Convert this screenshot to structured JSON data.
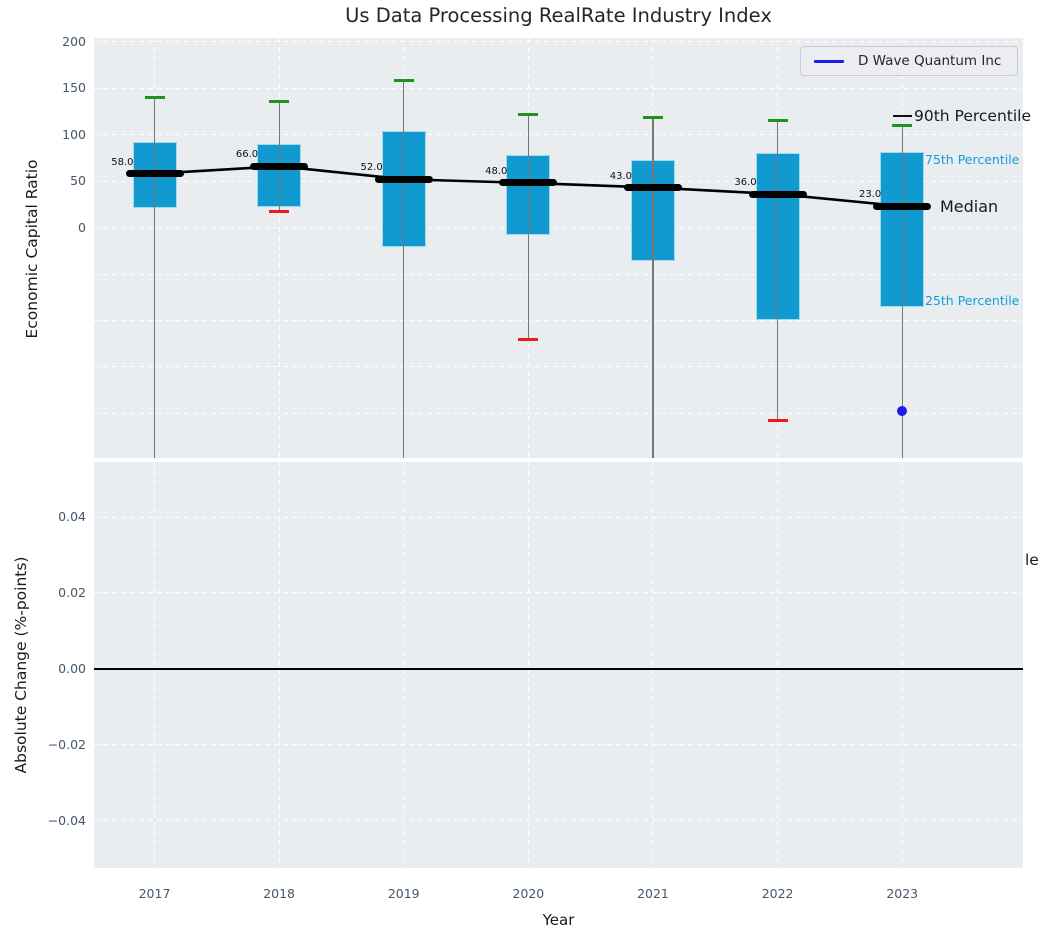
{
  "chart_data": {
    "type": "boxplot",
    "title": "Us Data Processing RealRate Industry Index",
    "xlabel": "Year",
    "legend": {
      "label": "D Wave Quantum Inc",
      "position": "upper right"
    },
    "annotations": {
      "p90": "90th Percentile",
      "p75": "75th Percentile",
      "median": "Median",
      "p25": "25th Percentile",
      "clipped_right": "le"
    },
    "categories": [
      "2017",
      "2018",
      "2019",
      "2020",
      "2021",
      "2022",
      "2023"
    ],
    "subplots": [
      {
        "ylabel": "Economic Capital Ratio",
        "yticks": [
          "200",
          "150",
          "100",
          "50",
          "0"
        ],
        "ytick_values": [
          200,
          150,
          100,
          50,
          0
        ],
        "ylim": [
          -248,
          204
        ],
        "grid_values": [
          200,
          150,
          100,
          50,
          0,
          -50,
          -100,
          -150,
          -200
        ],
        "grid": true,
        "boxes": [
          {
            "year": "2017",
            "p90": 140,
            "p75": 92,
            "median": 58,
            "p25": 21,
            "p10": null
          },
          {
            "year": "2018",
            "p90": 136,
            "p75": 90,
            "median": 66,
            "p25": 22,
            "p10": 17
          },
          {
            "year": "2019",
            "p90": 158,
            "p75": 104,
            "median": 52,
            "p25": -21,
            "p10": null
          },
          {
            "year": "2020",
            "p90": 122,
            "p75": 78,
            "median": 48,
            "p25": -8,
            "p10": -120
          },
          {
            "year": "2021",
            "p90": 118,
            "p75": 73,
            "median": 43,
            "p25": -36,
            "p10": null
          },
          {
            "year": "2022",
            "p90": 115,
            "p75": 80,
            "median": 36,
            "p25": -100,
            "p10": -208
          },
          {
            "year": "2023",
            "p90": 110,
            "p75": 81,
            "median": 23,
            "p25": -86,
            "p10": null
          }
        ],
        "median_labels": [
          "58.0",
          "66.0",
          "52.0",
          "48.0",
          "43.0",
          "36.0",
          "23.0"
        ],
        "company_point": {
          "label": "D Wave Quantum Inc",
          "year": "2023",
          "value": -197
        }
      },
      {
        "ylabel": "Absolute Change (%-points)",
        "yticks": [
          "0.04",
          "0.02",
          "0.00",
          "−0.02",
          "−0.04"
        ],
        "ytick_values": [
          0.04,
          0.02,
          0.0,
          -0.02,
          -0.04
        ],
        "ylim": [
          -0.0525,
          0.0545
        ],
        "grid": true,
        "zero_line_value": 0.0
      }
    ],
    "colors": {
      "box_fill": "#119ad0",
      "box_edge": "#9fd8ef",
      "whisker": "#777777",
      "p90_cap": "#1d941d",
      "p10_cap": "#e61e1e",
      "median": "#000000",
      "company": "#1c1ce8",
      "axes_bg": "#e9edf0",
      "grid": "#ffffff",
      "tick_label": "#44576e",
      "accent_text": "#149dd9"
    }
  }
}
